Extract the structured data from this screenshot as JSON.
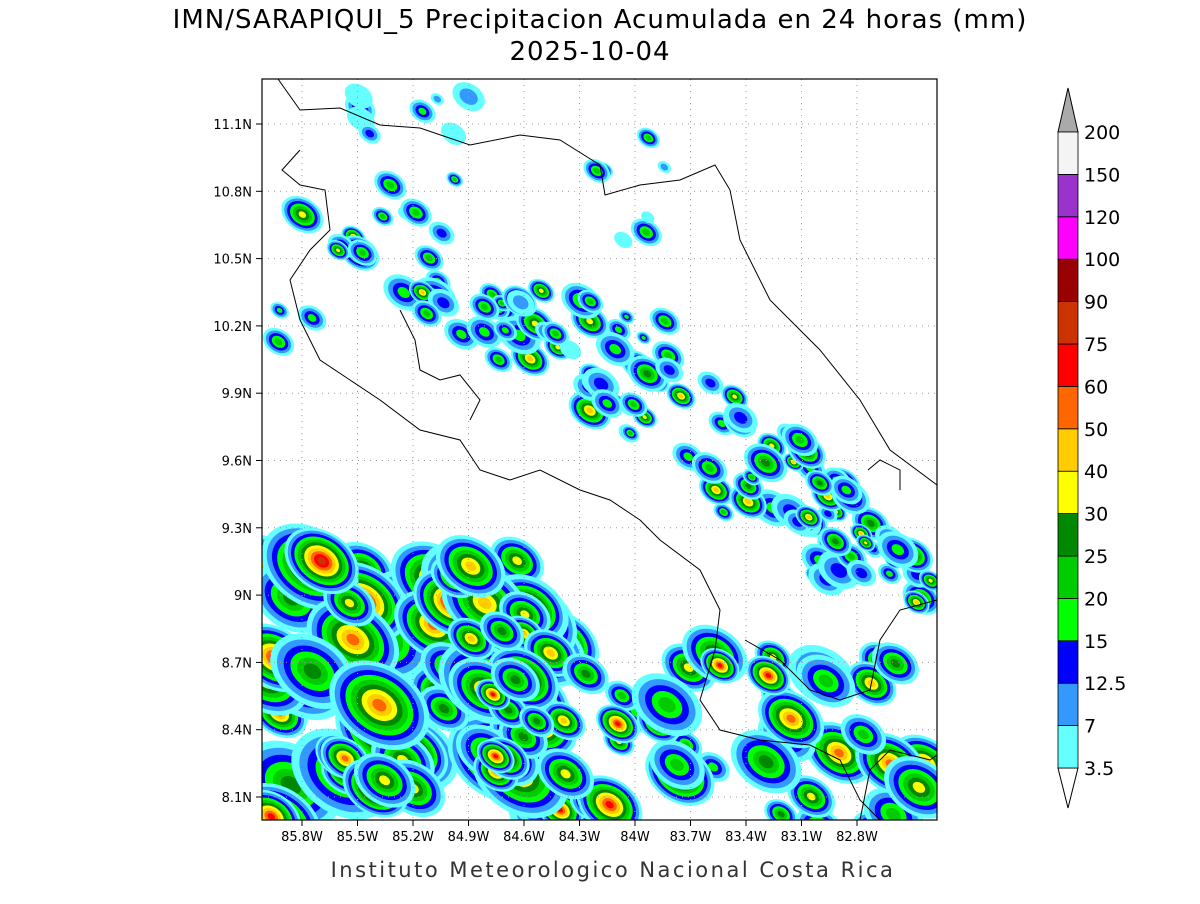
{
  "header": {
    "title": "IMN/SARAPIQUI_5 Precipitacion Acumulada en 24 horas (mm)",
    "date": "2025-10-04"
  },
  "map": {
    "lat_ticks": [
      {
        "value": 11.1,
        "label": "11.1N"
      },
      {
        "value": 10.8,
        "label": "10.8N"
      },
      {
        "value": 10.5,
        "label": "10.5N"
      },
      {
        "value": 10.2,
        "label": "10.2N"
      },
      {
        "value": 9.9,
        "label": "9.9N"
      },
      {
        "value": 9.6,
        "label": "9.6N"
      },
      {
        "value": 9.3,
        "label": "9.3N"
      },
      {
        "value": 9,
        "label": "9N"
      },
      {
        "value": 8.7,
        "label": "8.7N"
      },
      {
        "value": 8.4,
        "label": "8.4N"
      },
      {
        "value": 8.1,
        "label": "8.1N"
      }
    ],
    "lon_ticks": [
      {
        "value": -85.8,
        "label": "85.8W"
      },
      {
        "value": -85.5,
        "label": "85.5W"
      },
      {
        "value": -85.2,
        "label": "85.2W"
      },
      {
        "value": -84.9,
        "label": "84.9W"
      },
      {
        "value": -84.6,
        "label": "84.6W"
      },
      {
        "value": -84.3,
        "label": "84.3W"
      },
      {
        "value": -84,
        "label": "84W"
      },
      {
        "value": -83.7,
        "label": "83.7W"
      },
      {
        "value": -83.4,
        "label": "83.4W"
      },
      {
        "value": -83.1,
        "label": "83.1W"
      },
      {
        "value": -82.8,
        "label": "82.8W"
      }
    ]
  },
  "colorbar": {
    "labels": [
      "3.5",
      "7",
      "12.5",
      "15",
      "20",
      "25",
      "30",
      "40",
      "50",
      "60",
      "75",
      "90",
      "100",
      "120",
      "150",
      "200"
    ],
    "colors": [
      "#66ffff",
      "#3399ff",
      "#0000ff",
      "#00ff00",
      "#00cc00",
      "#008800",
      "#ffff00",
      "#ffcc00",
      "#ff6600",
      "#ff0000",
      "#cc3300",
      "#990000",
      "#ff00ff",
      "#9933cc",
      "#f4f4f4"
    ],
    "under_color": "#ffffff",
    "over_color": "#aaaaaa"
  },
  "footer": "Instituto Meteorologico Nacional Costa Rica"
}
